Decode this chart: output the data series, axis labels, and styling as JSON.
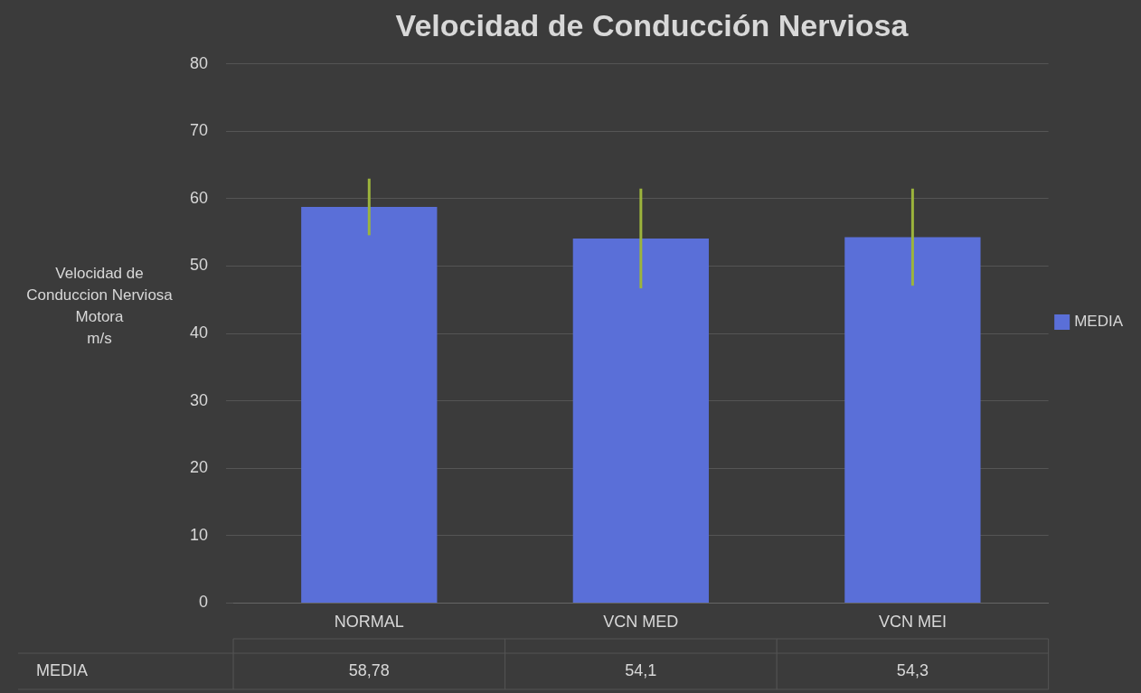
{
  "chart_data": {
    "type": "bar",
    "title": "Velocidad de Conducción Nerviosa",
    "ylabel": "Velocidad de\nConduccion Nerviosa\nMotora\nm/s",
    "categories": [
      "NORMAL",
      "VCN MED",
      "VCN MEI"
    ],
    "series": [
      {
        "name": "MEDIA",
        "color": "#5a6fd8",
        "values": [
          58.78,
          54.1,
          54.3
        ],
        "errors": [
          4.2,
          7.4,
          7.2
        ],
        "value_labels": [
          "58,78",
          "54,1",
          "54,3"
        ]
      }
    ],
    "ylim": [
      0,
      80
    ],
    "yticks": [
      0,
      10,
      20,
      30,
      40,
      50,
      60,
      70,
      80
    ],
    "grid": "y",
    "legend": "right"
  }
}
